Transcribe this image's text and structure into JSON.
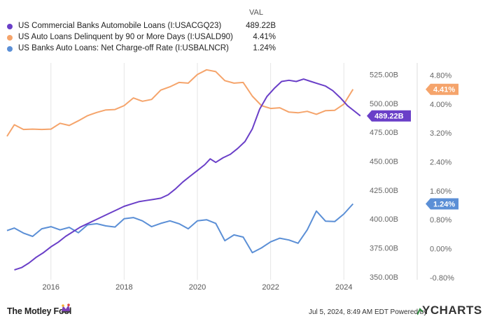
{
  "legend": {
    "header": "VAL",
    "items": [
      {
        "name": "US Commercial Banks Automobile Loans (I:USACGQ23)",
        "value": "489.22B",
        "color": "#6a3fc8"
      },
      {
        "name": "US Auto Loans Delinquent by 90 or More Days (I:USALD90)",
        "value": "4.41%",
        "color": "#f5a46b"
      },
      {
        "name": "US Banks Auto Loans: Net Charge-off Rate (I:USBALNCR)",
        "value": "1.24%",
        "color": "#5b8fd6"
      }
    ]
  },
  "footer": {
    "brand": "The Motley Fool",
    "timestamp": "Jul 5, 2024, 8:49 AM EDT Powered by",
    "provider": "YCHARTS"
  },
  "chart_data": {
    "type": "line",
    "x_ticks": [
      "2016",
      "2018",
      "2020",
      "2022",
      "2024"
    ],
    "y_left": {
      "ticks": [
        "525.00B",
        "500.00B",
        "475.00B",
        "450.00B",
        "425.00B",
        "400.00B",
        "375.00B",
        "350.00B"
      ],
      "range": [
        347.5,
        535
      ],
      "unit": "B"
    },
    "y_right": {
      "ticks": [
        "4.80%",
        "4.00%",
        "3.20%",
        "2.40%",
        "1.60%",
        "0.80%",
        "0.00%",
        "-0.80%"
      ],
      "range": [
        -0.86,
        5.14
      ],
      "unit": "%"
    },
    "grid": "vertical",
    "series": [
      {
        "name": "US Commercial Banks Automobile Loans (I:USACGQ23)",
        "axis": "left",
        "color": "#6a3fc8",
        "end_label": "489.22B",
        "points": [
          [
            2015.0,
            356
          ],
          [
            2015.2,
            358
          ],
          [
            2015.4,
            362
          ],
          [
            2015.6,
            367
          ],
          [
            2015.8,
            371
          ],
          [
            2016.0,
            376
          ],
          [
            2016.2,
            380
          ],
          [
            2016.4,
            385
          ],
          [
            2016.6,
            389
          ],
          [
            2016.8,
            393
          ],
          [
            2017.0,
            396
          ],
          [
            2017.2,
            399
          ],
          [
            2017.4,
            402
          ],
          [
            2017.6,
            405
          ],
          [
            2017.8,
            408
          ],
          [
            2018.0,
            411
          ],
          [
            2018.2,
            413
          ],
          [
            2018.4,
            415
          ],
          [
            2018.6,
            416
          ],
          [
            2018.8,
            417
          ],
          [
            2019.0,
            418
          ],
          [
            2019.2,
            421
          ],
          [
            2019.4,
            426
          ],
          [
            2019.6,
            432
          ],
          [
            2019.8,
            437
          ],
          [
            2020.0,
            442
          ],
          [
            2020.2,
            447
          ],
          [
            2020.35,
            452
          ],
          [
            2020.5,
            449
          ],
          [
            2020.7,
            453
          ],
          [
            2020.9,
            456
          ],
          [
            2021.1,
            461
          ],
          [
            2021.3,
            467
          ],
          [
            2021.5,
            478
          ],
          [
            2021.7,
            495
          ],
          [
            2021.9,
            506
          ],
          [
            2022.1,
            513
          ],
          [
            2022.3,
            519
          ],
          [
            2022.5,
            520
          ],
          [
            2022.7,
            519
          ],
          [
            2022.9,
            521
          ],
          [
            2023.1,
            519
          ],
          [
            2023.3,
            517
          ],
          [
            2023.5,
            515
          ],
          [
            2023.7,
            511
          ],
          [
            2023.9,
            505
          ],
          [
            2024.1,
            498
          ],
          [
            2024.3,
            493
          ],
          [
            2024.45,
            489.22
          ]
        ]
      },
      {
        "name": "US Auto Loans Delinquent by 90 or More Days (I:USALD90)",
        "axis": "right",
        "color": "#f5a46b",
        "end_label": "4.41%",
        "points": [
          [
            2014.8,
            3.11
          ],
          [
            2015.0,
            3.43
          ],
          [
            2015.25,
            3.3
          ],
          [
            2015.5,
            3.31
          ],
          [
            2015.75,
            3.3
          ],
          [
            2016.0,
            3.31
          ],
          [
            2016.25,
            3.47
          ],
          [
            2016.5,
            3.41
          ],
          [
            2016.75,
            3.54
          ],
          [
            2017.0,
            3.68
          ],
          [
            2017.25,
            3.77
          ],
          [
            2017.5,
            3.84
          ],
          [
            2017.75,
            3.85
          ],
          [
            2018.0,
            3.96
          ],
          [
            2018.25,
            4.17
          ],
          [
            2018.5,
            4.08
          ],
          [
            2018.75,
            4.13
          ],
          [
            2019.0,
            4.39
          ],
          [
            2019.25,
            4.48
          ],
          [
            2019.5,
            4.6
          ],
          [
            2019.75,
            4.58
          ],
          [
            2020.0,
            4.82
          ],
          [
            2020.25,
            4.95
          ],
          [
            2020.5,
            4.9
          ],
          [
            2020.75,
            4.65
          ],
          [
            2021.0,
            4.58
          ],
          [
            2021.25,
            4.6
          ],
          [
            2021.5,
            4.22
          ],
          [
            2021.75,
            3.96
          ],
          [
            2022.0,
            3.88
          ],
          [
            2022.25,
            3.9
          ],
          [
            2022.5,
            3.78
          ],
          [
            2022.75,
            3.76
          ],
          [
            2023.0,
            3.8
          ],
          [
            2023.25,
            3.72
          ],
          [
            2023.5,
            3.82
          ],
          [
            2023.75,
            3.83
          ],
          [
            2024.0,
            4.0
          ],
          [
            2024.25,
            4.41
          ]
        ]
      },
      {
        "name": "US Banks Auto Loans: Net Charge-off Rate (I:USBALNCR)",
        "axis": "right",
        "color": "#5b8fd6",
        "end_label": "1.24%",
        "points": [
          [
            2014.8,
            0.5
          ],
          [
            2015.0,
            0.57
          ],
          [
            2015.25,
            0.43
          ],
          [
            2015.5,
            0.34
          ],
          [
            2015.75,
            0.55
          ],
          [
            2016.0,
            0.61
          ],
          [
            2016.25,
            0.52
          ],
          [
            2016.5,
            0.59
          ],
          [
            2016.75,
            0.44
          ],
          [
            2017.0,
            0.66
          ],
          [
            2017.25,
            0.69
          ],
          [
            2017.5,
            0.63
          ],
          [
            2017.75,
            0.6
          ],
          [
            2018.0,
            0.83
          ],
          [
            2018.25,
            0.86
          ],
          [
            2018.5,
            0.77
          ],
          [
            2018.75,
            0.61
          ],
          [
            2019.0,
            0.7
          ],
          [
            2019.25,
            0.77
          ],
          [
            2019.5,
            0.69
          ],
          [
            2019.75,
            0.55
          ],
          [
            2020.0,
            0.77
          ],
          [
            2020.25,
            0.8
          ],
          [
            2020.5,
            0.7
          ],
          [
            2020.75,
            0.22
          ],
          [
            2021.0,
            0.38
          ],
          [
            2021.25,
            0.32
          ],
          [
            2021.5,
            -0.11
          ],
          [
            2021.75,
            0.02
          ],
          [
            2022.0,
            0.19
          ],
          [
            2022.25,
            0.29
          ],
          [
            2022.5,
            0.24
          ],
          [
            2022.75,
            0.15
          ],
          [
            2023.0,
            0.52
          ],
          [
            2023.25,
            1.04
          ],
          [
            2023.5,
            0.76
          ],
          [
            2023.75,
            0.75
          ],
          [
            2024.0,
            0.96
          ],
          [
            2024.25,
            1.24
          ]
        ]
      }
    ]
  }
}
